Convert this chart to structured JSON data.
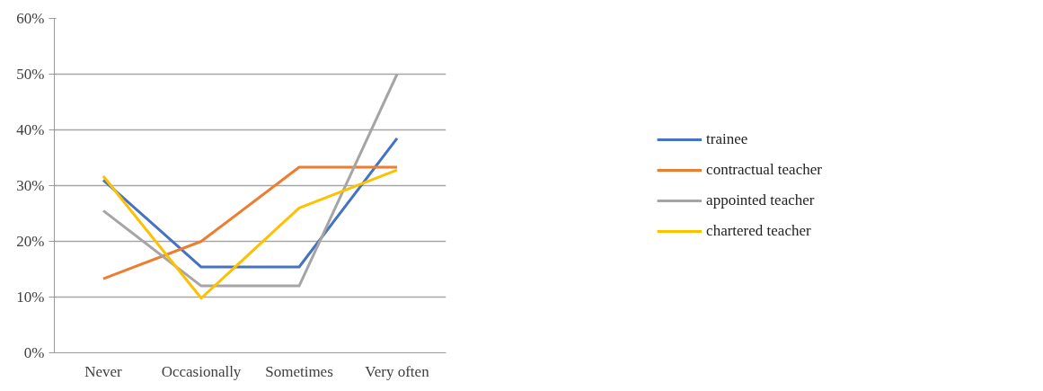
{
  "chart_data": {
    "type": "line",
    "categories": [
      "Never",
      "Occasionally",
      "Sometimes",
      "Very often"
    ],
    "series": [
      {
        "name": "trainee",
        "color": "#4472c4",
        "values": [
          31,
          15.4,
          15.4,
          38.5
        ]
      },
      {
        "name": "contractual teacher",
        "color": "#ed7d31",
        "values": [
          13.3,
          20,
          33.3,
          33.3
        ]
      },
      {
        "name": "appointed teacher",
        "color": "#a5a5a5",
        "values": [
          25.5,
          12,
          12,
          50
        ]
      },
      {
        "name": "chartered teacher",
        "color": "#ffc000",
        "values": [
          31.7,
          9.8,
          26,
          32.8
        ]
      }
    ],
    "ylim": [
      0,
      60
    ],
    "yticks": [
      {
        "value": 0,
        "label": "0%"
      },
      {
        "value": 10,
        "label": "10%"
      },
      {
        "value": 20,
        "label": "20%"
      },
      {
        "value": 30,
        "label": "30%"
      },
      {
        "value": 40,
        "label": "40%"
      },
      {
        "value": 50,
        "label": "50%"
      },
      {
        "value": 60,
        "label": "60%"
      }
    ],
    "grid": "y",
    "legend": "right",
    "marker": "none",
    "line_style": "solid"
  }
}
